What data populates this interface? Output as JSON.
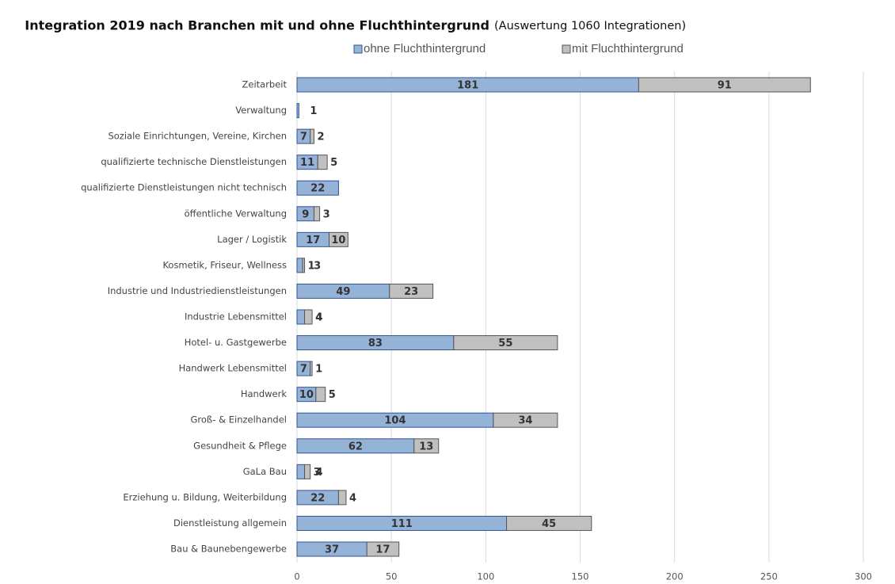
{
  "chart_data": {
    "type": "stacked-barh",
    "title": "Integration 2019 nach Branchen mit und ohne Fluchthintergrund",
    "subtitle": "(Auswertung 1060 Integrationen)",
    "categories": [
      "Zeitarbeit",
      "Verwaltung",
      "Soziale Einrichtungen, Vereine, Kirchen",
      "qualifizierte technische Dienstleistungen",
      "qualifizierte Dienstleistungen nicht technisch",
      "öffentliche Verwaltung",
      "Lager / Logistik",
      "Kosmetik, Friseur, Wellness",
      "Industrie und Industriedienstleistungen",
      "Industrie Lebensmittel",
      "Hotel- u. Gastgewerbe",
      "Handwerk Lebensmittel",
      "Handwerk",
      "Groß- & Einzelhandel",
      "Gesundheit & Pflege",
      "GaLa Bau",
      "Erziehung u. Bildung, Weiterbildung",
      "Dienstleistung allgemein",
      "Bau & Baunebengewerbe"
    ],
    "series": [
      {
        "name": "ohne Fluchthintergrund",
        "color": "#95b3d7",
        "values": [
          181,
          1,
          7,
          11,
          22,
          9,
          17,
          3,
          49,
          4,
          83,
          7,
          10,
          104,
          62,
          4,
          22,
          111,
          37
        ]
      },
      {
        "name": "mit Fluchthintergrund",
        "color": "#c0c0c0",
        "values": [
          91,
          null,
          2,
          5,
          null,
          3,
          10,
          1,
          23,
          4,
          55,
          1,
          5,
          34,
          13,
          3,
          4,
          45,
          17
        ]
      }
    ],
    "xlim": [
      0,
      300
    ],
    "xticks": [
      0,
      50,
      100,
      150,
      200,
      250,
      300
    ],
    "grid": true
  }
}
